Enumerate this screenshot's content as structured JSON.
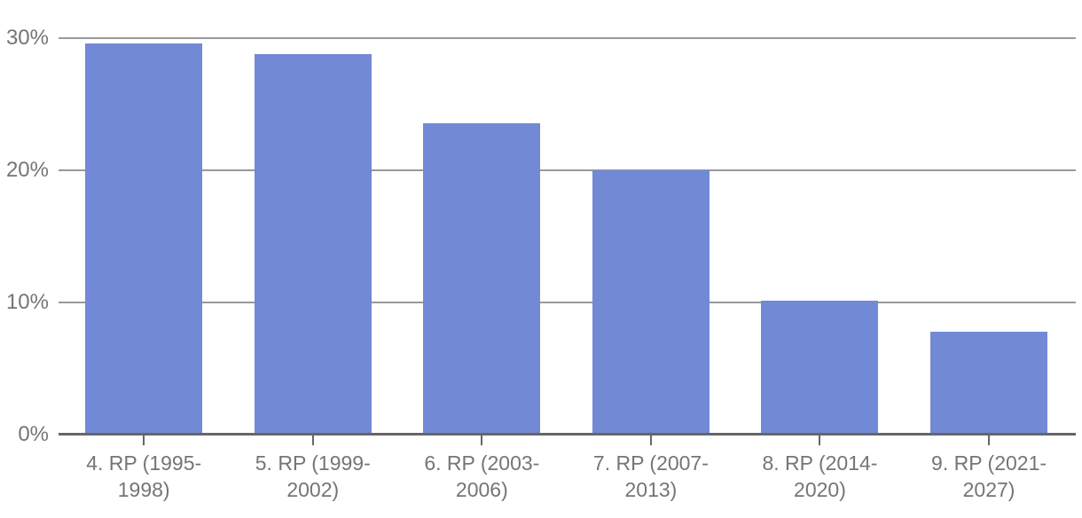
{
  "chart_data": {
    "type": "bar",
    "title": "",
    "xlabel": "",
    "ylabel": "",
    "unit": "%",
    "categories": [
      "4. RP (1995-1998)",
      "5. RP (1999-2002)",
      "6. RP (2003-2006)",
      "7. RP (2007-2013)",
      "8. RP (2014-2020)",
      "9. RP (2021-2027)"
    ],
    "category_label_lines": [
      [
        "4. RP (1995-",
        "1998)"
      ],
      [
        "5. RP (1999-",
        "2002)"
      ],
      [
        "6. RP (2003-",
        "2006)"
      ],
      [
        "7. RP (2007-",
        "2013)"
      ],
      [
        "8. RP (2014-",
        "2020)"
      ],
      [
        "9. RP (2021-",
        "2027)"
      ]
    ],
    "values": [
      29.6,
      28.8,
      23.6,
      20.0,
      10.1,
      7.8
    ],
    "y_ticks": [
      {
        "value": 30,
        "label": "30%"
      },
      {
        "value": 20,
        "label": "20%"
      },
      {
        "value": 10,
        "label": "10%"
      },
      {
        "value": 0,
        "label": "0%"
      }
    ],
    "ylim": [
      0,
      33
    ],
    "grid": true,
    "legend": false,
    "colors": {
      "bar": "#7289d6",
      "gridline": "#999999",
      "axis": "#666666",
      "text": "#757575",
      "background": "#ffffff"
    }
  }
}
